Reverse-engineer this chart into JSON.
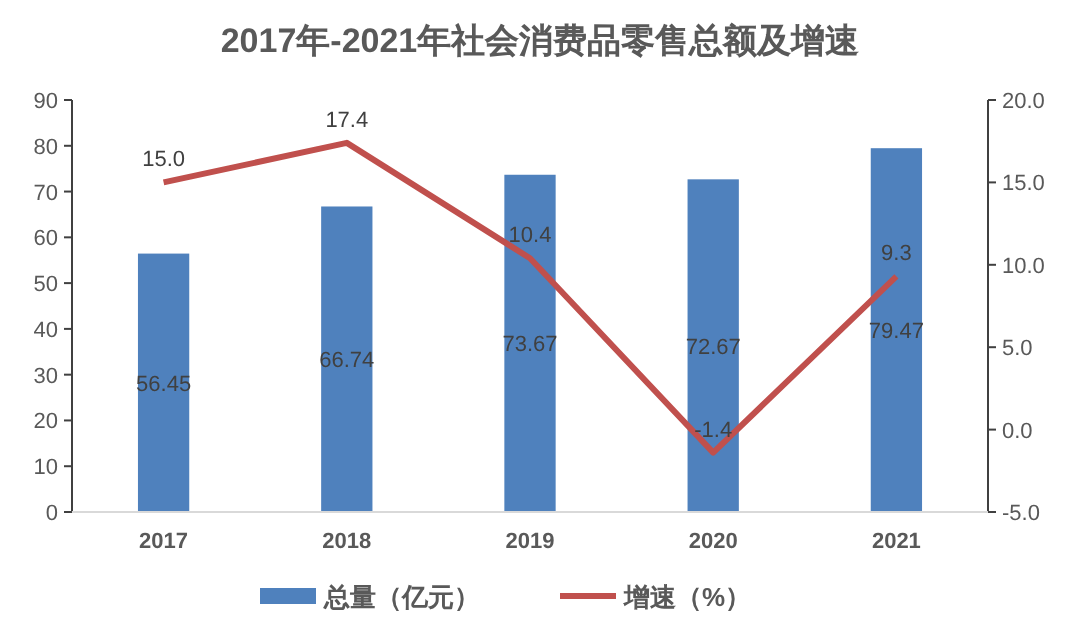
{
  "chart_data": {
    "type": "bar",
    "title": "2017年-2021年社会消费品零售总额及增速",
    "categories": [
      "2017",
      "2018",
      "2019",
      "2020",
      "2021"
    ],
    "series": [
      {
        "name": "总量（亿元）",
        "color": "#4f81bd",
        "values": [
          56.45,
          66.74,
          73.67,
          72.67,
          79.47
        ]
      },
      {
        "name": "增速（%）",
        "type": "line",
        "axis": "y2",
        "color": "#c0504d",
        "values": [
          15.0,
          17.4,
          10.4,
          -1.4,
          9.3
        ],
        "value_labels": [
          "15.0",
          "17.4",
          "10.4",
          "-1.4",
          "9.3"
        ]
      }
    ],
    "ylim": [
      0,
      90
    ],
    "yticks": [
      0,
      10,
      20,
      30,
      40,
      50,
      60,
      70,
      80,
      90
    ],
    "y2lim": [
      -5,
      20
    ],
    "y2ticks": [
      {
        "value": -5,
        "label": "-5.0"
      },
      {
        "value": 0,
        "label": "0.0"
      },
      {
        "value": 5,
        "label": "5.0"
      },
      {
        "value": 10,
        "label": "10.0"
      },
      {
        "value": 15,
        "label": "15.0"
      },
      {
        "value": 20,
        "label": "20.0"
      }
    ],
    "data_labels": true,
    "legend": "bottom",
    "marker": "none",
    "line_style": "solid"
  }
}
